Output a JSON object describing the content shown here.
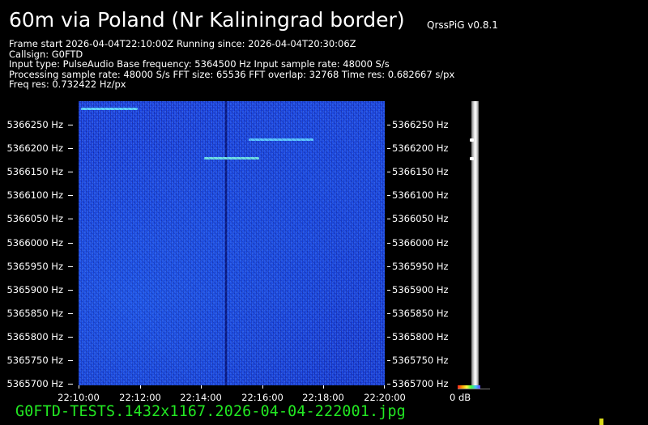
{
  "header": {
    "title": "60m via Poland (Nr Kaliningrad border)",
    "version": "QrssPiG v0.8.1"
  },
  "info_lines": [
    "Frame start 2026-04-04T22:10:00Z Running since: 2026-04-04T20:30:06Z",
    "Callsign: G0FTD",
    "Input type: PulseAudio Base frequency: 5364500 Hz Input sample rate: 48000 S/s",
    "Processing sample rate: 48000 S/s FFT size: 65536 FFT overlap: 32768 Time res: 0.682667 s/px",
    "Freq res: 0.732422 Hz/px"
  ],
  "frequency_axis": {
    "labels": [
      "5366250 Hz",
      "5366200 Hz",
      "5366150 Hz",
      "5366100 Hz",
      "5366050 Hz",
      "5366000 Hz",
      "5365950 Hz",
      "5365900 Hz",
      "5365850 Hz",
      "5365800 Hz",
      "5365750 Hz",
      "5365700 Hz"
    ]
  },
  "time_axis": {
    "labels": [
      "22:10:00",
      "22:12:00",
      "22:14:00",
      "22:16:00",
      "22:18:00",
      "22:20:00"
    ]
  },
  "scale": {
    "db_label": "0 dB"
  },
  "footer": {
    "filename": "G0FTD-TESTS.1432x1167.2026-04-04-222001.jpg"
  },
  "colors": {
    "waterfall_background": "#1a44e2",
    "signal_trace": "#5fd3ff",
    "filename_text": "#22e822",
    "corner_marker": "#d9d91a"
  }
}
